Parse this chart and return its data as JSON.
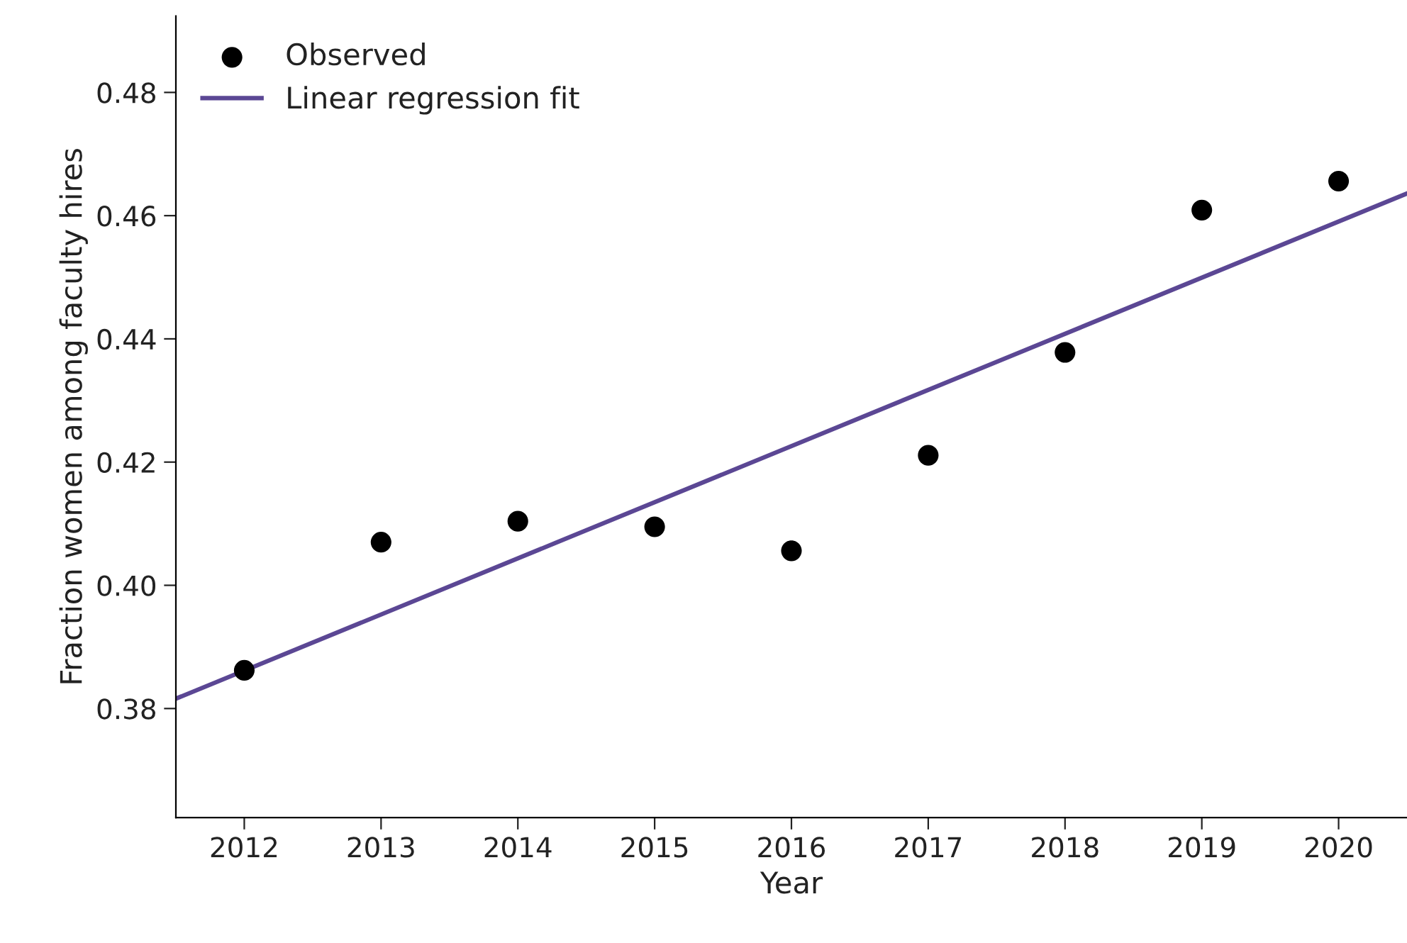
{
  "chart_data": {
    "type": "scatter",
    "xlabel": "Year",
    "ylabel": "Fraction women among faculty hires",
    "x": [
      2012,
      2013,
      2014,
      2015,
      2016,
      2017,
      2018,
      2019,
      2020
    ],
    "series": [
      {
        "name": "Observed",
        "color": "#000000",
        "marker": "circle",
        "values": [
          0.3862,
          0.407,
          0.4104,
          0.4095,
          0.4056,
          0.4211,
          0.4378,
          0.4609,
          0.4656
        ]
      },
      {
        "name": "Linear regression fit",
        "type": "line",
        "color": "#5b4794",
        "marker": "none",
        "line_style": "solid",
        "x": [
          2011.5,
          2020.5
        ],
        "values": [
          0.3816,
          0.4636
        ]
      }
    ],
    "xlim": [
      2011.5,
      2020.5
    ],
    "ylim": [
      0.3623,
      0.4924
    ],
    "xticks": [
      2012,
      2013,
      2014,
      2015,
      2016,
      2017,
      2018,
      2019,
      2020
    ],
    "yticks": [
      {
        "value": 0.38,
        "label": "0.38"
      },
      {
        "value": 0.4,
        "label": "0.40"
      },
      {
        "value": 0.42,
        "label": "0.42"
      },
      {
        "value": 0.44,
        "label": "0.44"
      },
      {
        "value": 0.46,
        "label": "0.46"
      },
      {
        "value": 0.48,
        "label": "0.48"
      }
    ],
    "grid": false,
    "legend": "top left"
  }
}
